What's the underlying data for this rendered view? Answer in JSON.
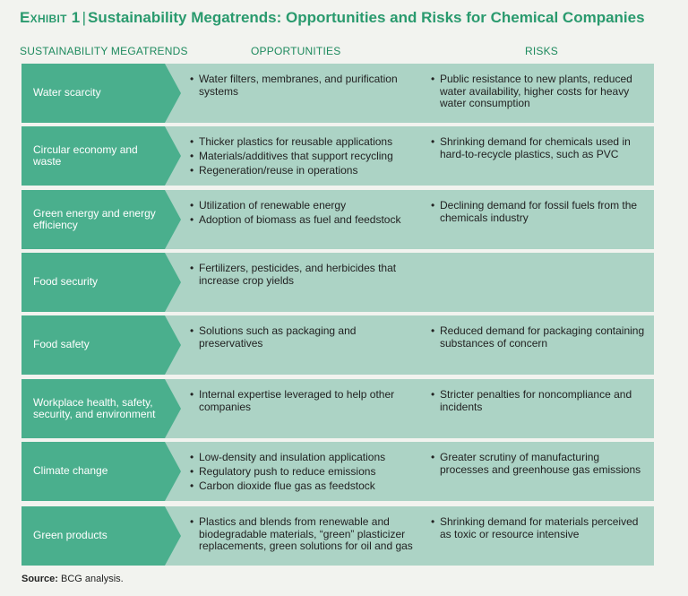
{
  "title": {
    "exhibit": "Exhibit 1",
    "separator": "|",
    "text": "Sustainability Megatrends: Opportunities and Risks for Chemical Companies"
  },
  "headers": {
    "megatrends": "SUSTAINABILITY MEGATRENDS",
    "opportunities": "OPPORTUNITIES",
    "risks": "RISKS"
  },
  "rows": [
    {
      "megatrend": "Water scarcity",
      "opportunities": [
        "Water filters, membranes, and purification systems"
      ],
      "risks": [
        "Public resistance to new plants, reduced water availability, higher costs for heavy water consumption"
      ]
    },
    {
      "megatrend": "Circular economy and waste",
      "opportunities": [
        "Thicker plastics for reusable applications",
        "Materials/additives that support recycling",
        "Regeneration/reuse in operations"
      ],
      "risks": [
        "Shrinking demand for chemicals used in hard-to-recycle plastics, such as PVC"
      ]
    },
    {
      "megatrend": "Green energy and energy efficiency",
      "opportunities": [
        "Utilization of renewable energy",
        "Adoption of biomass as fuel and feedstock"
      ],
      "risks": [
        "Declining demand for fossil fuels from the chemicals industry"
      ]
    },
    {
      "megatrend": "Food security",
      "opportunities": [
        "Fertilizers, pesticides, and herbicides that increase crop yields"
      ],
      "risks": []
    },
    {
      "megatrend": "Food safety",
      "opportunities": [
        "Solutions such as packaging and preservatives"
      ],
      "risks": [
        "Reduced demand for packaging containing substances of concern"
      ]
    },
    {
      "megatrend": "Workplace health, safety, security, and environment",
      "opportunities": [
        "Internal expertise leveraged to help other companies"
      ],
      "risks": [
        "Stricter penalties for noncompliance and incidents"
      ]
    },
    {
      "megatrend": "Climate change",
      "opportunities": [
        "Low-density and insulation applications",
        "Regulatory push to reduce emissions",
        "Carbon dioxide flue gas as feedstock"
      ],
      "risks": [
        "Greater scrutiny of manufacturing processes and greenhouse gas emissions"
      ]
    },
    {
      "megatrend": "Green products",
      "opportunities": [
        "Plastics and blends from renewable and biodegradable materials, “green” plasticizer replacements, green solutions for oil and gas"
      ],
      "risks": [
        "Shrinking demand for materials perceived as toxic or resource intensive"
      ]
    }
  ],
  "source": {
    "label": "Source:",
    "text": "BCG analysis."
  }
}
